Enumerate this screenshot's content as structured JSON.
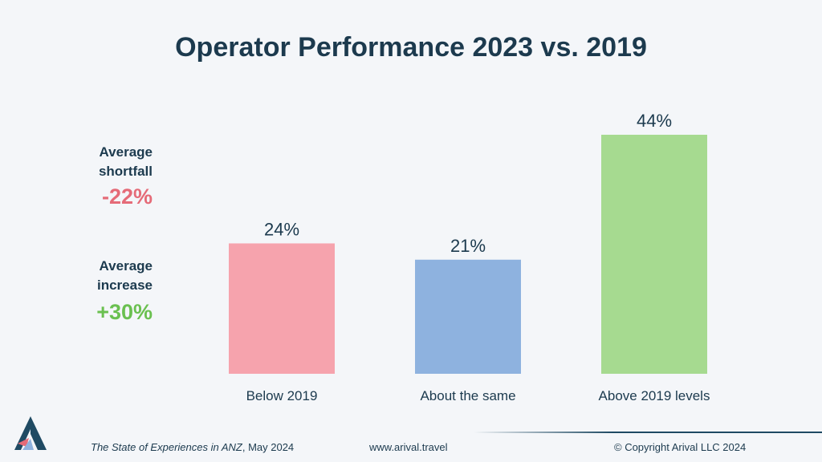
{
  "colors": {
    "background": "#f4f6f9",
    "title": "#1c3a4e",
    "below": "#f6a3ad",
    "same": "#8eb2df",
    "above": "#a6da90",
    "negative": "#e56b78",
    "positive": "#6ac050"
  },
  "chart_data": {
    "type": "bar",
    "title": "Operator Performance 2023 vs. 2019",
    "categories": [
      "Below 2019",
      "About the same",
      "Above 2019 levels"
    ],
    "values": [
      24,
      21,
      44
    ],
    "value_labels": [
      "24%",
      "21%",
      "44%"
    ],
    "bar_colors": [
      "#f6a3ad",
      "#8eb2df",
      "#a6da90"
    ],
    "unit": "%",
    "xlabel": "",
    "ylabel": "",
    "ylim": [
      0,
      44
    ],
    "grid": false,
    "legend": "none"
  },
  "side_stats": {
    "shortfall": {
      "label_line1": "Average",
      "label_line2": "shortfall",
      "value": "-22%"
    },
    "increase": {
      "label_line1": "Average",
      "label_line2": "increase",
      "value": "+30%"
    }
  },
  "footer": {
    "source_title": "The State of Experiences in ANZ",
    "source_date": ", May 2024",
    "website": "www.arival.travel",
    "copyright": "© Copyright Arival LLC 2024"
  },
  "logo": {
    "icon": "arival-logo-icon"
  }
}
